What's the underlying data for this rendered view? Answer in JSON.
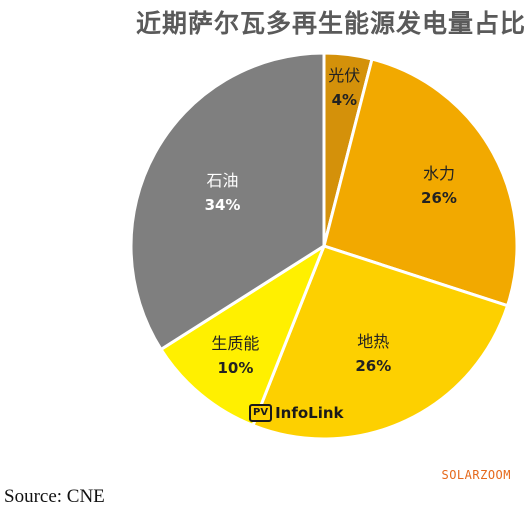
{
  "chart_data": {
    "type": "pie",
    "title": "近期萨尔瓦多再生能源发电量占比",
    "slices": [
      {
        "label": "光伏",
        "value": 4,
        "pct_label": "4%",
        "color": "#d4910a"
      },
      {
        "label": "水力",
        "value": 26,
        "pct_label": "26%",
        "color": "#f2a900"
      },
      {
        "label": "地热",
        "value": 26,
        "pct_label": "26%",
        "color": "#fdd000"
      },
      {
        "label": "生质能",
        "value": 10,
        "pct_label": "10%",
        "color": "#fff000"
      },
      {
        "label": "石油",
        "value": 34,
        "pct_label": "34%",
        "color": "#7f7f7f"
      }
    ],
    "start_angle_deg": 0,
    "direction": "clockwise"
  },
  "watermark": {
    "badge": "PV",
    "name": "InfoLink"
  },
  "brand": "SOLARZOOM",
  "source": "Source: CNE"
}
